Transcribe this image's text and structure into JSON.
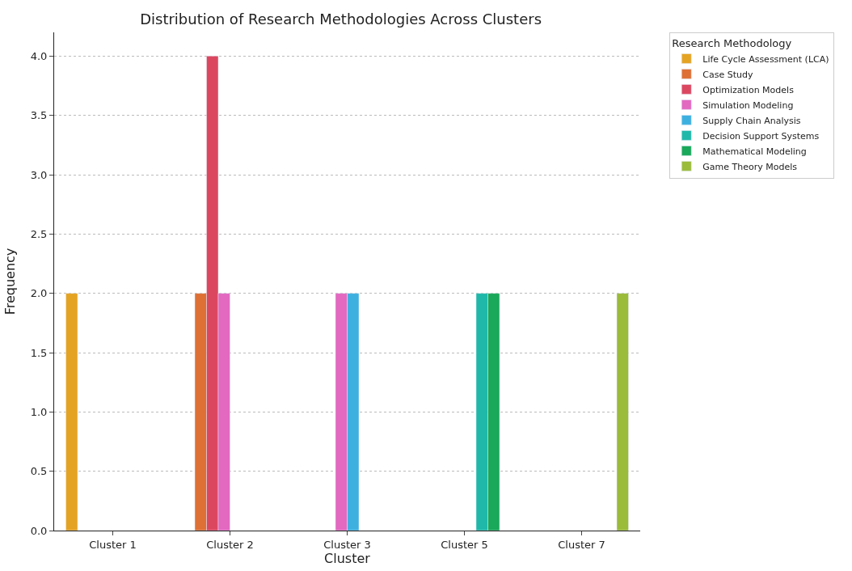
{
  "chart_data": {
    "type": "bar",
    "title": "Distribution of Research Methodologies Across Clusters",
    "xlabel": "Cluster",
    "ylabel": "Frequency",
    "legend_title": "Research Methodology",
    "categories": [
      "Cluster 1",
      "Cluster 2",
      "Cluster 3",
      "Cluster 5",
      "Cluster 7"
    ],
    "series": [
      {
        "name": "Life Cycle Assessment (LCA)",
        "color": "#e5a323",
        "values": [
          2,
          null,
          null,
          null,
          null
        ]
      },
      {
        "name": "Case Study",
        "color": "#de6f35",
        "values": [
          null,
          2,
          null,
          null,
          null
        ]
      },
      {
        "name": "Optimization Models",
        "color": "#dc4760",
        "values": [
          null,
          4,
          null,
          null,
          null
        ]
      },
      {
        "name": "Simulation Modeling",
        "color": "#e268c0",
        "values": [
          null,
          2,
          2,
          null,
          null
        ]
      },
      {
        "name": "Supply Chain Analysis",
        "color": "#3eb0e0",
        "values": [
          null,
          null,
          2,
          null,
          null
        ]
      },
      {
        "name": "Decision Support Systems",
        "color": "#1fb8a9",
        "values": [
          null,
          null,
          null,
          2,
          null
        ]
      },
      {
        "name": "Mathematical Modeling",
        "color": "#1aa85a",
        "values": [
          null,
          null,
          null,
          2,
          null
        ]
      },
      {
        "name": "Game Theory Models",
        "color": "#9bbb3a",
        "values": [
          null,
          null,
          null,
          null,
          2
        ]
      }
    ],
    "ylim": [
      0,
      4.2
    ],
    "yticks": [
      {
        "value": 0,
        "label": "0.0"
      },
      {
        "value": 0.5,
        "label": "0.5"
      },
      {
        "value": 1,
        "label": "1.0"
      },
      {
        "value": 1.5,
        "label": "1.5"
      },
      {
        "value": 2,
        "label": "2.0"
      },
      {
        "value": 2.5,
        "label": "2.5"
      },
      {
        "value": 3,
        "label": "3.0"
      },
      {
        "value": 3.5,
        "label": "3.5"
      },
      {
        "value": 4,
        "label": "4.0"
      }
    ],
    "grid": "y",
    "legend": "top right"
  }
}
